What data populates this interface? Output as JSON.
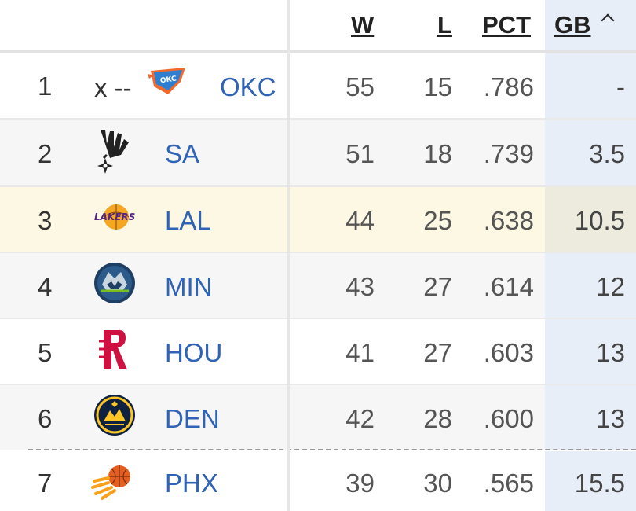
{
  "headers": {
    "w": "W",
    "l": "L",
    "pct": "PCT",
    "gb": "GB"
  },
  "colors": {
    "link": "#2e63b6",
    "highlight_row": "#fdf8e3",
    "sorted_column": "#e7eef8"
  },
  "rows": [
    {
      "rank": "1",
      "prefix": "x --",
      "team": "OKC",
      "logo": "thunder-logo",
      "w": "55",
      "l": "15",
      "pct": ".786",
      "gb": "-"
    },
    {
      "rank": "2",
      "prefix": "",
      "team": "SA",
      "logo": "spurs-logo",
      "w": "51",
      "l": "18",
      "pct": ".739",
      "gb": "3.5"
    },
    {
      "rank": "3",
      "prefix": "",
      "team": "LAL",
      "logo": "lakers-logo",
      "w": "44",
      "l": "25",
      "pct": ".638",
      "gb": "10.5"
    },
    {
      "rank": "4",
      "prefix": "",
      "team": "MIN",
      "logo": "timberwolves-logo",
      "w": "43",
      "l": "27",
      "pct": ".614",
      "gb": "12"
    },
    {
      "rank": "5",
      "prefix": "",
      "team": "HOU",
      "logo": "rockets-logo",
      "w": "41",
      "l": "27",
      "pct": ".603",
      "gb": "13"
    },
    {
      "rank": "6",
      "prefix": "",
      "team": "DEN",
      "logo": "nuggets-logo",
      "w": "42",
      "l": "28",
      "pct": ".600",
      "gb": "13"
    },
    {
      "rank": "7",
      "prefix": "",
      "team": "PHX",
      "logo": "suns-logo",
      "w": "39",
      "l": "30",
      "pct": ".565",
      "gb": "15.5"
    }
  ]
}
